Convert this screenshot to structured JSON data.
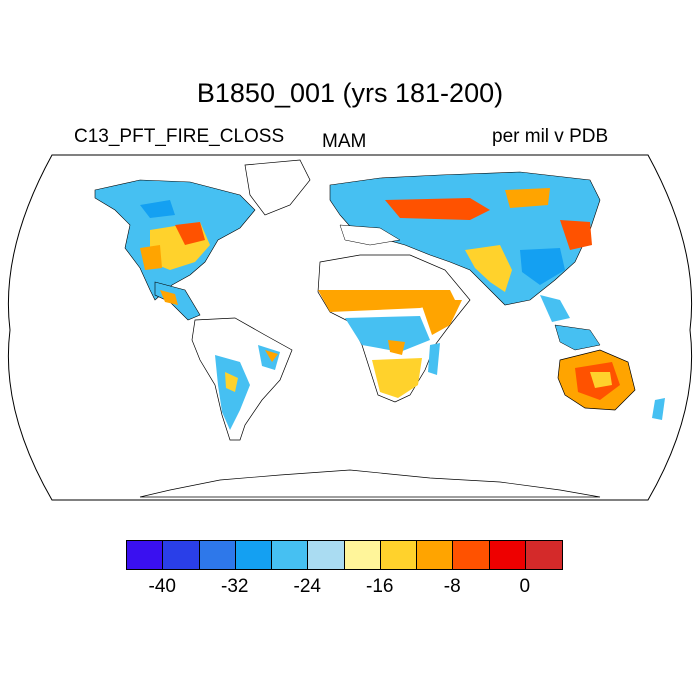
{
  "header": {
    "title": "B1850_001 (yrs 181-200)",
    "variable": "C13_PFT_FIRE_CLOSS",
    "season": "MAM",
    "units": "per mil v PDB"
  },
  "colorbar": {
    "colors": [
      "#3a10f0",
      "#2a3fe8",
      "#2e78ea",
      "#14a0f2",
      "#46c0f2",
      "#aadcf2",
      "#fff59a",
      "#ffd22c",
      "#ffa400",
      "#ff5200",
      "#ee0000",
      "#d42a2a"
    ],
    "ticks": [
      "-40",
      "-32",
      "-24",
      "-16",
      "-8",
      "0"
    ]
  }
}
